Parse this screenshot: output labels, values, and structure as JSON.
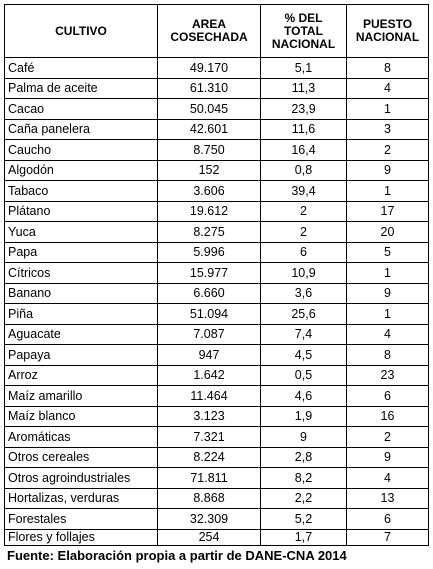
{
  "table": {
    "headers": {
      "crop": "CULTIVO",
      "area": [
        "AREA",
        "COSECHADA"
      ],
      "pct": [
        "% DEL",
        "TOTAL",
        "NACIONAL"
      ],
      "rank": [
        "PUESTO",
        "NACIONAL"
      ]
    },
    "rows": [
      {
        "crop": "Café",
        "area": "49.170",
        "pct": "5,1",
        "rank": "8"
      },
      {
        "crop": "Palma de aceite",
        "area": "61.310",
        "pct": "11,3",
        "rank": "4"
      },
      {
        "crop": "Cacao",
        "area": "50.045",
        "pct": "23,9",
        "rank": "1"
      },
      {
        "crop": "Caña panelera",
        "area": "42.601",
        "pct": "11,6",
        "rank": "3"
      },
      {
        "crop": "Caucho",
        "area": "8.750",
        "pct": "16,4",
        "rank": "2"
      },
      {
        "crop": "Algodón",
        "area": "152",
        "pct": "0,8",
        "rank": "9"
      },
      {
        "crop": "Tabaco",
        "area": "3.606",
        "pct": "39,4",
        "rank": "1"
      },
      {
        "crop": "Plátano",
        "area": "19.612",
        "pct": "2",
        "rank": "17"
      },
      {
        "crop": "Yuca",
        "area": "8.275",
        "pct": "2",
        "rank": "20"
      },
      {
        "crop": "Papa",
        "area": "5.996",
        "pct": "6",
        "rank": "5"
      },
      {
        "crop": "Cítricos",
        "area": "15.977",
        "pct": "10,9",
        "rank": "1"
      },
      {
        "crop": "Banano",
        "area": "6.660",
        "pct": "3,6",
        "rank": "9"
      },
      {
        "crop": "Piña",
        "area": "51.094",
        "pct": "25,6",
        "rank": "1"
      },
      {
        "crop": "Aguacate",
        "area": "7.087",
        "pct": "7,4",
        "rank": "4"
      },
      {
        "crop": "Papaya",
        "area": "947",
        "pct": "4,5",
        "rank": "8"
      },
      {
        "crop": "Arroz",
        "area": "1.642",
        "pct": "0,5",
        "rank": "23"
      },
      {
        "crop": "Maíz amarillo",
        "area": "11.464",
        "pct": "4,6",
        "rank": "6"
      },
      {
        "crop": "Maíz blanco",
        "area": "3.123",
        "pct": "1,9",
        "rank": "16"
      },
      {
        "crop": "Aromáticas",
        "area": "7.321",
        "pct": "9",
        "rank": "2"
      },
      {
        "crop": "Otros cereales",
        "area": "8.224",
        "pct": "2,8",
        "rank": "9"
      },
      {
        "crop": "Otros agroindustriales",
        "area": "71.811",
        "pct": "8,2",
        "rank": "4"
      },
      {
        "crop": "Hortalizas, verduras",
        "area": "8.868",
        "pct": "2,2",
        "rank": "13"
      },
      {
        "crop": "Forestales",
        "area": "32.309",
        "pct": "5,2",
        "rank": "6"
      },
      {
        "crop": "Flores y follajes",
        "area": "254",
        "pct": "1,7",
        "rank": "7"
      }
    ]
  },
  "source": "Fuente: Elaboración propia a partir de DANE-CNA 2014"
}
